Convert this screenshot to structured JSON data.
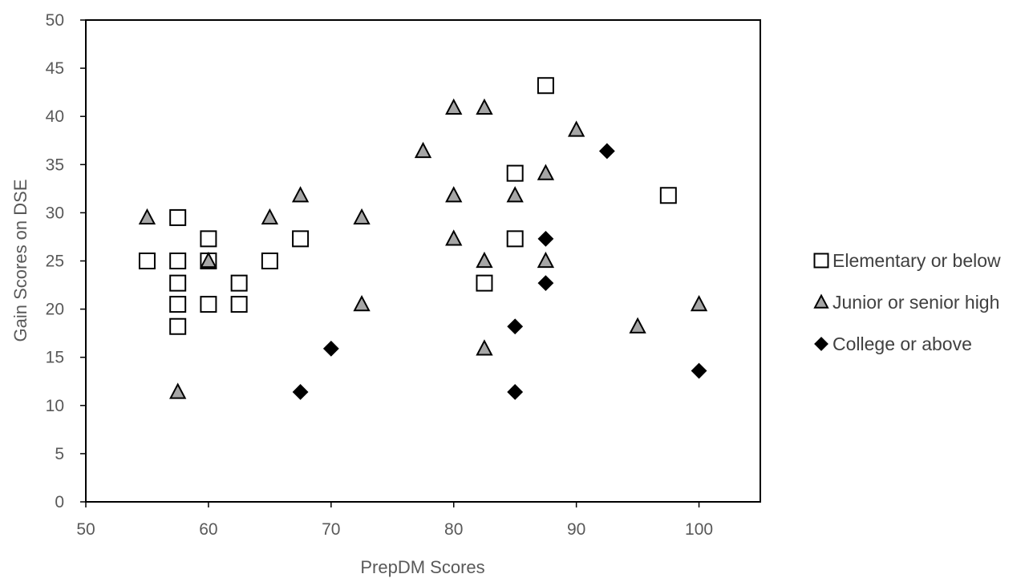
{
  "chart_data": {
    "type": "scatter",
    "title": "",
    "xlabel": "PrepDM Scores",
    "ylabel": "Gain Scores on DSE",
    "xlim": [
      50,
      105
    ],
    "ylim": [
      0,
      50
    ],
    "x_ticks": [
      50,
      60,
      70,
      80,
      90,
      100
    ],
    "y_ticks": [
      0,
      5,
      10,
      15,
      20,
      25,
      30,
      35,
      40,
      45,
      50
    ],
    "grid": false,
    "legend_position": "right",
    "series": [
      {
        "name": "Elementary or below",
        "marker": "square",
        "fill": "#ffffff",
        "stroke": "#000000",
        "points": [
          {
            "x": 55,
            "y": 25
          },
          {
            "x": 57.5,
            "y": 29.5
          },
          {
            "x": 57.5,
            "y": 25
          },
          {
            "x": 57.5,
            "y": 22.7
          },
          {
            "x": 57.5,
            "y": 20.5
          },
          {
            "x": 57.5,
            "y": 18.2
          },
          {
            "x": 60,
            "y": 27.3
          },
          {
            "x": 60,
            "y": 25
          },
          {
            "x": 60,
            "y": 20.5
          },
          {
            "x": 62.5,
            "y": 22.7
          },
          {
            "x": 62.5,
            "y": 20.5
          },
          {
            "x": 65,
            "y": 25
          },
          {
            "x": 67.5,
            "y": 27.3
          },
          {
            "x": 82.5,
            "y": 22.7
          },
          {
            "x": 85,
            "y": 34.1
          },
          {
            "x": 85,
            "y": 27.3
          },
          {
            "x": 87.5,
            "y": 43.2
          },
          {
            "x": 97.5,
            "y": 31.8
          }
        ]
      },
      {
        "name": "Junior or senior high",
        "marker": "triangle",
        "fill": "#a6a6a6",
        "stroke": "#000000",
        "points": [
          {
            "x": 55,
            "y": 29.5
          },
          {
            "x": 57.5,
            "y": 11.4
          },
          {
            "x": 60,
            "y": 25
          },
          {
            "x": 65,
            "y": 29.5
          },
          {
            "x": 67.5,
            "y": 31.8
          },
          {
            "x": 72.5,
            "y": 29.5
          },
          {
            "x": 72.5,
            "y": 20.5
          },
          {
            "x": 77.5,
            "y": 36.4
          },
          {
            "x": 80,
            "y": 40.9
          },
          {
            "x": 80,
            "y": 31.8
          },
          {
            "x": 80,
            "y": 27.3
          },
          {
            "x": 82.5,
            "y": 40.9
          },
          {
            "x": 82.5,
            "y": 25
          },
          {
            "x": 82.5,
            "y": 15.9
          },
          {
            "x": 85,
            "y": 31.8
          },
          {
            "x": 87.5,
            "y": 34.1
          },
          {
            "x": 87.5,
            "y": 25
          },
          {
            "x": 90,
            "y": 38.6
          },
          {
            "x": 95,
            "y": 18.2
          },
          {
            "x": 100,
            "y": 20.5
          }
        ]
      },
      {
        "name": "College or above",
        "marker": "diamond",
        "fill": "#000000",
        "stroke": "#000000",
        "points": [
          {
            "x": 67.5,
            "y": 11.4
          },
          {
            "x": 70,
            "y": 15.9
          },
          {
            "x": 85,
            "y": 18.2
          },
          {
            "x": 85,
            "y": 11.4
          },
          {
            "x": 87.5,
            "y": 27.3
          },
          {
            "x": 87.5,
            "y": 22.7
          },
          {
            "x": 92.5,
            "y": 36.4
          },
          {
            "x": 100,
            "y": 13.6
          }
        ]
      }
    ]
  }
}
